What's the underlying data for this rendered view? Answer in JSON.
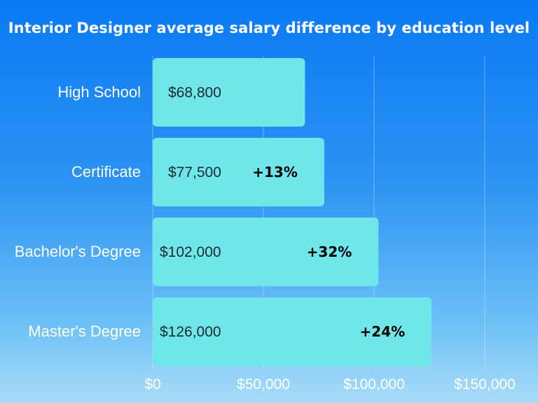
{
  "chart_data": {
    "type": "bar",
    "orientation": "horizontal",
    "title": "Interior Designer average salary difference by education level",
    "categories": [
      "High School",
      "Certificate",
      "Bachelor's Degree",
      "Master's Degree"
    ],
    "values": [
      68800,
      77500,
      102000,
      126000
    ],
    "value_labels": [
      "$68,800",
      "$77,500",
      "$102,000",
      "$126,000"
    ],
    "diff_labels": [
      "",
      "+13%",
      "+32%",
      "+24%"
    ],
    "xlim": [
      0,
      150000
    ],
    "xticks": [
      0,
      50000,
      100000,
      150000
    ],
    "xtick_labels": [
      "$0",
      "$50,000",
      "$100,000",
      "$150,000"
    ],
    "grid": true,
    "bar_color": "#6fe6ea"
  }
}
